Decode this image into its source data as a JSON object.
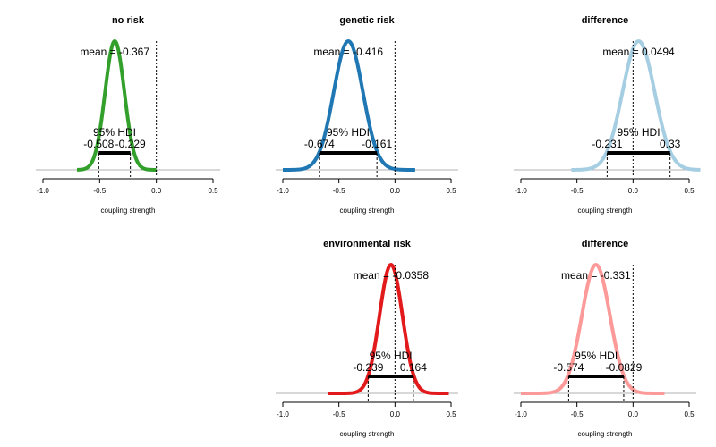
{
  "chart_data": [
    {
      "type": "area",
      "title": "no risk",
      "xlabel": "coupling strength",
      "color": "#33a02c",
      "xlim": [
        -1.0,
        0.5
      ],
      "xticks": [
        "-1.0",
        "-0.5",
        "0.0",
        "0.5"
      ],
      "mean": -0.367,
      "sd": 0.085,
      "curve_range": [
        -0.7,
        0.0
      ],
      "mean_label": "mean = -0.367",
      "hdi_label": "95% HDI",
      "hdi": [
        -0.508,
        -0.229
      ],
      "hdi_low_label": "-0.508",
      "hdi_high_label": "-0.229",
      "ref_line": 0.0
    },
    {
      "type": "area",
      "title": "genetic risk",
      "xlabel": "coupling strength",
      "color": "#1f78b4",
      "xlim": [
        -1.0,
        0.5
      ],
      "xticks": [
        "-1.0",
        "-0.5",
        "0.0",
        "0.5"
      ],
      "mean": -0.416,
      "sd": 0.13,
      "curve_range": [
        -1.0,
        0.18
      ],
      "mean_label": "mean = -0.416",
      "hdi_label": "95% HDI",
      "hdi": [
        -0.674,
        -0.161
      ],
      "hdi_low_label": "-0.674",
      "hdi_high_label": "-0.161",
      "ref_line": 0.0
    },
    {
      "type": "area",
      "title": "difference",
      "xlabel": "coupling strength",
      "color": "#a6cee3",
      "xlim": [
        -1.0,
        0.5
      ],
      "xticks": [
        "-1.0",
        "-0.5",
        "0.0",
        "0.5"
      ],
      "mean": 0.0494,
      "sd": 0.143,
      "curve_range": [
        -0.55,
        0.6
      ],
      "mean_label": "mean = 0.0494",
      "hdi_label": "95% HDI",
      "hdi": [
        -0.231,
        0.33
      ],
      "hdi_low_label": "-0.231",
      "hdi_high_label": "0.33",
      "ref_line": 0.0
    },
    {
      "type": "area",
      "title": "environmental risk",
      "xlabel": "coupling strength",
      "color": "#e31a1c",
      "xlim": [
        -1.0,
        0.5
      ],
      "xticks": [
        "-1.0",
        "-0.5",
        "0.0",
        "0.5"
      ],
      "mean": -0.0358,
      "sd": 0.102,
      "curve_range": [
        -0.6,
        0.48
      ],
      "mean_label": "mean = -0.0358",
      "hdi_label": "95% HDI",
      "hdi": [
        -0.239,
        0.164
      ],
      "hdi_low_label": "-0.239",
      "hdi_high_label": "0.164",
      "ref_line": 0.0
    },
    {
      "type": "area",
      "title": "difference",
      "xlabel": "coupling strength",
      "color": "#fb9a99",
      "xlim": [
        -1.0,
        0.5
      ],
      "xticks": [
        "-1.0",
        "-0.5",
        "0.0",
        "0.5"
      ],
      "mean": -0.331,
      "sd": 0.125,
      "curve_range": [
        -1.0,
        0.28
      ],
      "mean_label": "mean = -0.331",
      "hdi_label": "95% HDI",
      "hdi": [
        -0.574,
        -0.0829
      ],
      "hdi_low_label": "-0.574",
      "hdi_high_label": "-0.0829",
      "ref_line": 0.0
    }
  ]
}
